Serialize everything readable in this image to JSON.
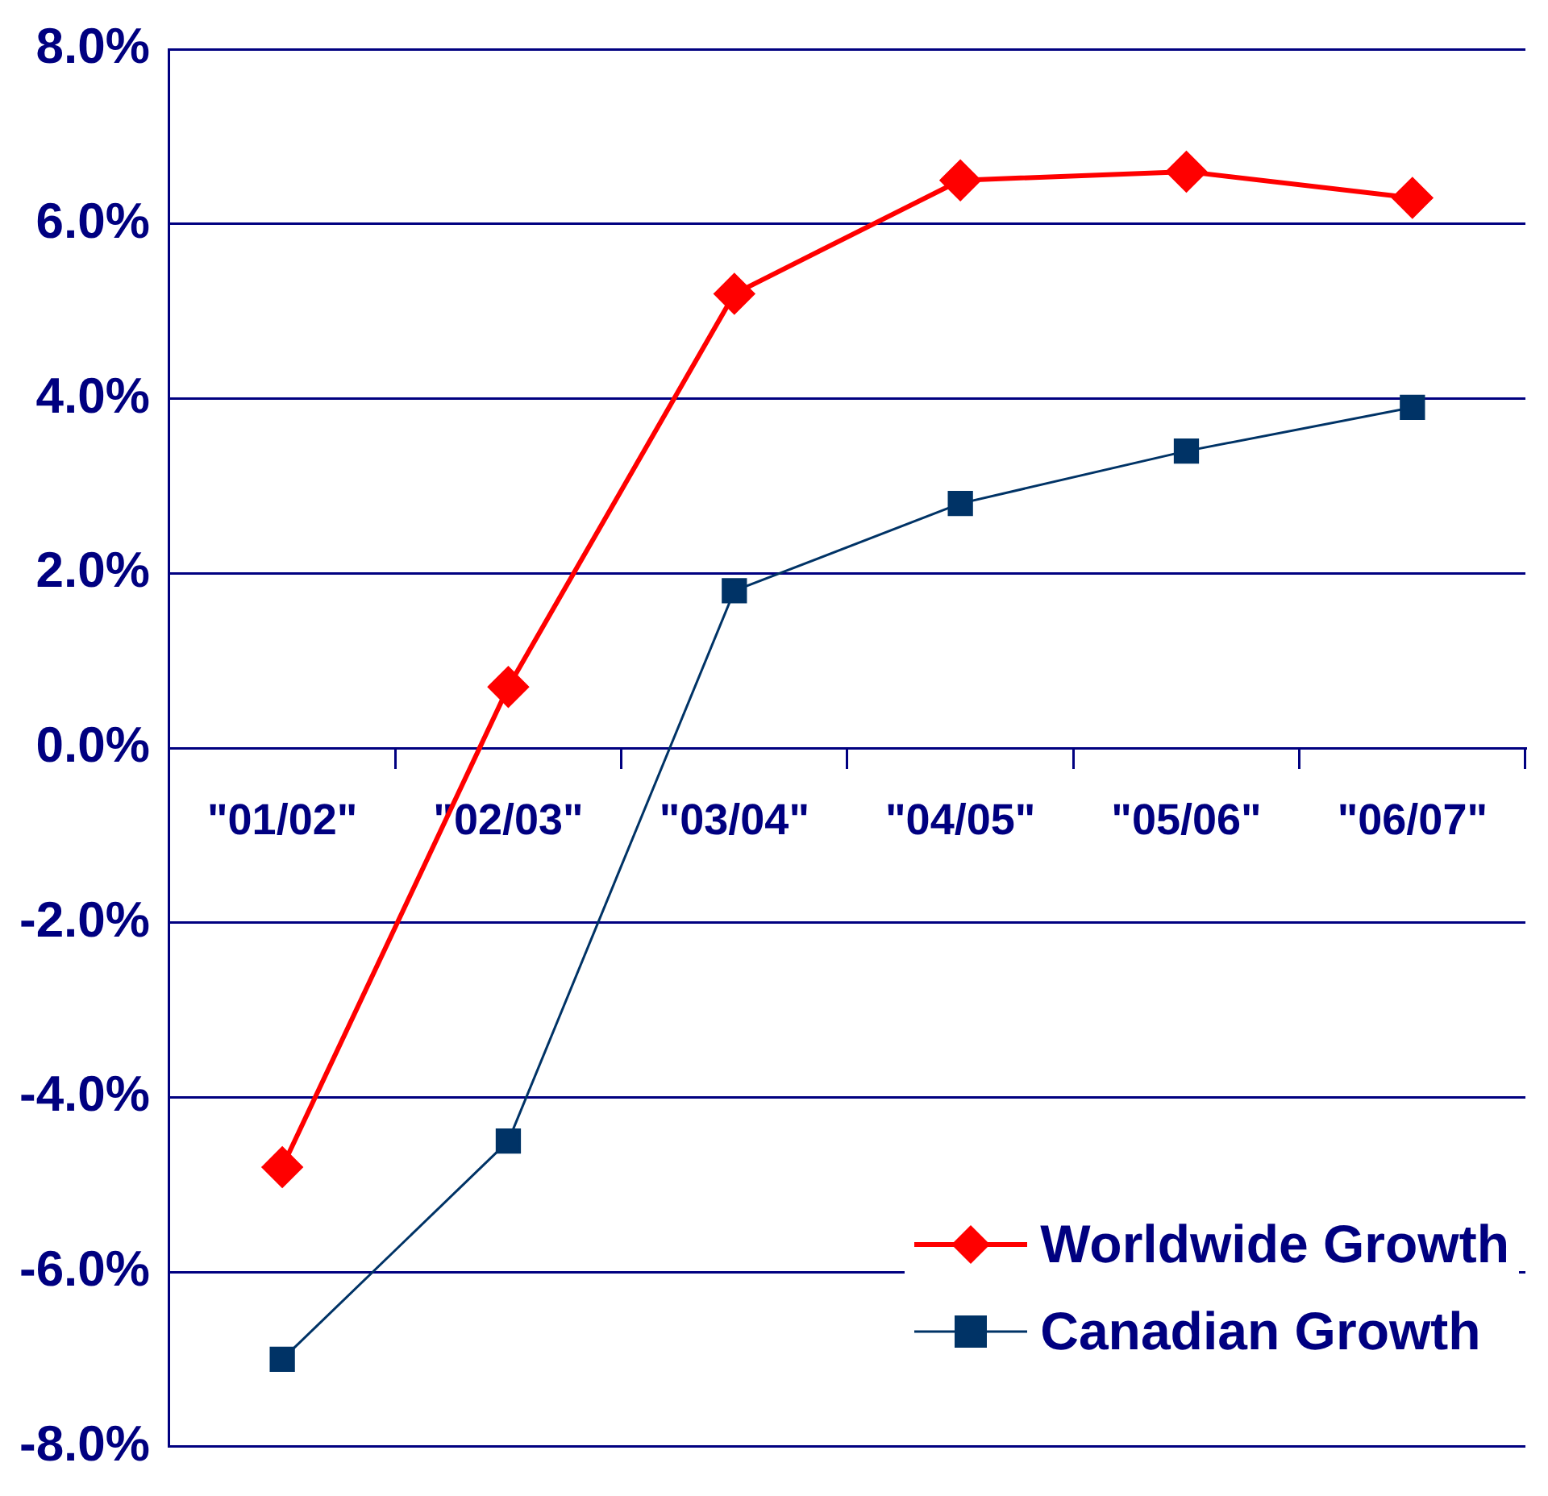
{
  "chart_data": {
    "type": "line",
    "categories": [
      "\"01/02\"",
      "\"02/03\"",
      "\"03/04\"",
      "\"04/05\"",
      "\"05/06\"",
      "\"06/07\""
    ],
    "series": [
      {
        "name": "Worldwide Growth",
        "color": "#ff0000",
        "marker": "diamond",
        "values": [
          -4.8,
          0.7,
          5.2,
          6.5,
          6.6,
          6.3
        ]
      },
      {
        "name": "Canadian Growth",
        "color": "#003366",
        "marker": "square",
        "values": [
          -7.0,
          -4.5,
          1.8,
          2.8,
          3.4,
          3.9
        ]
      }
    ],
    "ylim": [
      -8,
      8
    ],
    "yticks": [
      {
        "value": -8,
        "label": "-8.0%"
      },
      {
        "value": -6,
        "label": "-6.0%"
      },
      {
        "value": -4,
        "label": "-4.0%"
      },
      {
        "value": -2,
        "label": "-2.0%"
      },
      {
        "value": 0,
        "label": "0.0%"
      },
      {
        "value": 2,
        "label": "2.0%"
      },
      {
        "value": 4,
        "label": "4.0%"
      },
      {
        "value": 6,
        "label": "6.0%"
      },
      {
        "value": 8,
        "label": "8.0%"
      }
    ],
    "grid": "y",
    "legend": "bottom right"
  }
}
